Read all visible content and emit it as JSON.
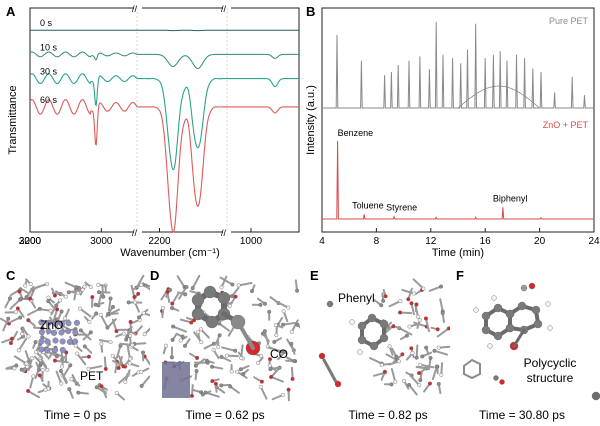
{
  "panel_a": {
    "letter": "A",
    "ylabel": "Transmittance",
    "xlabel": "Wavenumber (cm⁻¹)",
    "break_symbol": "//",
    "ticks": [
      {
        "x": 3200,
        "label": "3200"
      },
      {
        "x": 3000,
        "label": "3000"
      },
      {
        "x": 2200,
        "label": "2200"
      },
      {
        "x": 2000,
        "label": "2000"
      },
      {
        "x": 1000,
        "label": "1000"
      }
    ],
    "trace_labels": [
      "0 s",
      "10 s",
      "30 s",
      "60 s"
    ]
  },
  "panel_b": {
    "letter": "B",
    "ylabel": "Intensity (a.u.)",
    "xlabel": "Time (min)",
    "ticks": [
      "4",
      "8",
      "12",
      "16",
      "20",
      "24"
    ],
    "annotations": [
      "Benzene",
      "Toluene",
      "Styrene",
      "Biphenyl"
    ]
  },
  "panel_c": {
    "letter": "C",
    "labels": [
      "ZnO",
      "PET"
    ],
    "caption": "Time = 0 ps"
  },
  "panel_d": {
    "letter": "D",
    "labels": [
      "CO"
    ],
    "caption": "Time = 0.62 ps"
  },
  "panel_e": {
    "letter": "E",
    "labels": [
      "Phenyl"
    ],
    "caption": "Time = 0.82 ps"
  },
  "panel_f": {
    "letter": "F",
    "labels": [
      "Polycyclic",
      "structure"
    ],
    "caption": "Time = 30.80 ps"
  },
  "chart_data": [
    {
      "type": "line",
      "panel": "A",
      "xlabel": "Wavenumber (cm⁻¹)",
      "ylabel": "Transmittance",
      "x_segments": [
        [
          3200,
          2900
        ],
        [
          2250,
          2050
        ],
        [
          1050,
          900
        ]
      ],
      "x_reversed": true,
      "legend": "inline labels",
      "series": [
        {
          "name": "0 s",
          "color": "#2c5f5c",
          "offset": 1.0,
          "features": [
            {
              "x": 3015,
              "depth": 0.0
            },
            {
              "x": 2170,
              "depth": 0.002
            },
            {
              "x": 2115,
              "depth": 0.002
            }
          ]
        },
        {
          "name": "10 s",
          "color": "#2f8a7a",
          "offset": 0.88,
          "features": [
            {
              "x": 3015,
              "depth": 0.03
            },
            {
              "x": 2170,
              "depth": 0.06
            },
            {
              "x": 2115,
              "depth": 0.07
            },
            {
              "x": 950,
              "depth": 0.02
            }
          ]
        },
        {
          "name": "30 s",
          "color": "#2aa58d",
          "offset": 0.76,
          "features": [
            {
              "x": 3015,
              "depth": 0.14
            },
            {
              "x": 2170,
              "depth": 0.45
            },
            {
              "x": 2115,
              "depth": 0.35
            },
            {
              "x": 950,
              "depth": 0.04
            }
          ]
        },
        {
          "name": "60 s",
          "color": "#e05a5a",
          "offset": 0.62,
          "features": [
            {
              "x": 3015,
              "depth": 0.2
            },
            {
              "x": 2170,
              "depth": 0.62
            },
            {
              "x": 2115,
              "depth": 0.5
            },
            {
              "x": 950,
              "depth": 0.03
            }
          ]
        }
      ]
    },
    {
      "type": "line",
      "panel": "B",
      "xlabel": "Time (min)",
      "ylabel": "Intensity (a.u.)",
      "xlim": [
        4,
        24
      ],
      "series": [
        {
          "name": "Pure PET",
          "color": "#8a8a8a",
          "peaks": [
            {
              "x": 5.1,
              "h": 0.85
            },
            {
              "x": 6.9,
              "h": 0.55
            },
            {
              "x": 8.6,
              "h": 0.38
            },
            {
              "x": 9.1,
              "h": 0.42
            },
            {
              "x": 9.6,
              "h": 0.5
            },
            {
              "x": 10.4,
              "h": 0.55
            },
            {
              "x": 11.2,
              "h": 0.6
            },
            {
              "x": 11.9,
              "h": 0.45
            },
            {
              "x": 12.4,
              "h": 1.0
            },
            {
              "x": 12.9,
              "h": 0.62
            },
            {
              "x": 13.6,
              "h": 0.58
            },
            {
              "x": 14.2,
              "h": 0.52
            },
            {
              "x": 14.7,
              "h": 0.68
            },
            {
              "x": 15.3,
              "h": 0.98
            },
            {
              "x": 16.0,
              "h": 0.58
            },
            {
              "x": 16.6,
              "h": 0.62
            },
            {
              "x": 17.1,
              "h": 0.66
            },
            {
              "x": 17.6,
              "h": 0.55
            },
            {
              "x": 18.3,
              "h": 0.62
            },
            {
              "x": 18.9,
              "h": 0.58
            },
            {
              "x": 19.5,
              "h": 0.46
            },
            {
              "x": 20.1,
              "h": 0.42
            },
            {
              "x": 21.1,
              "h": 0.18
            },
            {
              "x": 22.4,
              "h": 0.36
            },
            {
              "x": 23.3,
              "h": 0.15
            }
          ]
        },
        {
          "name": "ZnO + PET",
          "color": "#d94b4b",
          "peaks": [
            {
              "x": 5.15,
              "h": 1.0,
              "label": "Benzene"
            },
            {
              "x": 7.1,
              "h": 0.06,
              "label": "Toluene"
            },
            {
              "x": 9.3,
              "h": 0.03,
              "label": "Styrene"
            },
            {
              "x": 17.3,
              "h": 0.15,
              "label": "Biphenyl"
            },
            {
              "x": 12.4,
              "h": 0.02
            },
            {
              "x": 15.3,
              "h": 0.02
            },
            {
              "x": 20.1,
              "h": 0.015
            }
          ]
        }
      ]
    }
  ]
}
